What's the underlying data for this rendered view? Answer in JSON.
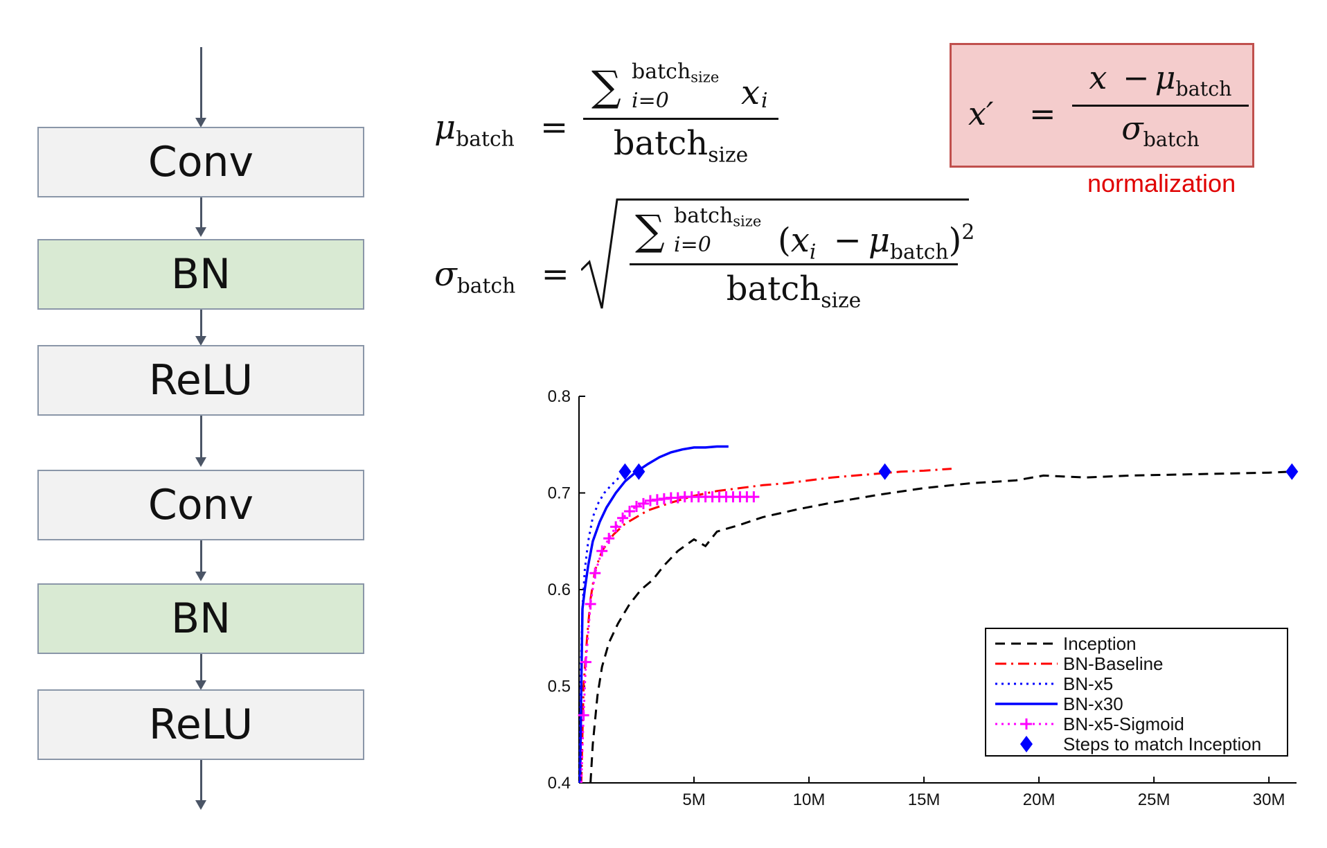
{
  "pipeline": {
    "blocks": [
      {
        "label": "Conv",
        "kind": "plain"
      },
      {
        "label": "BN",
        "kind": "bn"
      },
      {
        "label": "ReLU",
        "kind": "plain"
      },
      {
        "label": "Conv",
        "kind": "plain"
      },
      {
        "label": "BN",
        "kind": "bn"
      },
      {
        "label": "ReLU",
        "kind": "plain"
      }
    ],
    "colors": {
      "plain": "#f2f2f2",
      "bn": "#d9ead3",
      "border": "#8a96a8",
      "arrow": "#4b5566"
    }
  },
  "equations": {
    "mu": {
      "lhs": "μ",
      "lhs_sub": "batch",
      "eq": "=",
      "sum": "∑",
      "sum_upper": "batch",
      "sum_upper_sub": "size",
      "sum_lower": "i=0",
      "term": "x",
      "term_sub": "i",
      "den": "batch",
      "den_sub": "size"
    },
    "sigma": {
      "lhs": "σ",
      "lhs_sub": "batch",
      "eq": "=",
      "sum": "∑",
      "sum_upper": "batch",
      "sum_upper_sub": "size",
      "sum_lower": "i=0",
      "paren_open": "(",
      "term": "x",
      "term_sub": "i",
      "minus": "−",
      "mu": "μ",
      "mu_sub": "batch",
      "paren_close": ")",
      "power": "2",
      "den": "batch",
      "den_sub": "size"
    },
    "normalization": {
      "lhs": "x′",
      "eq": "=",
      "num_x": "x",
      "num_minus": "−",
      "num_mu": "μ",
      "num_mu_sub": "batch",
      "den_sigma": "σ",
      "den_sigma_sub": "batch",
      "caption": "normalization",
      "box_fill": "#f4cccc",
      "box_border": "#c0504d",
      "caption_color": "#e00000"
    }
  },
  "chart_data": {
    "type": "line",
    "xlim": [
      0,
      31.2
    ],
    "ylim": [
      0.4,
      0.8
    ],
    "x_unit": "M",
    "xticks": [
      5,
      10,
      15,
      20,
      25,
      30
    ],
    "xtick_labels": [
      "5M",
      "10M",
      "15M",
      "20M",
      "25M",
      "30M"
    ],
    "yticks": [
      0.4,
      0.5,
      0.6,
      0.7,
      0.8
    ],
    "ytick_labels": [
      "0.4",
      "0.5",
      "0.6",
      "0.7",
      "0.8"
    ],
    "legend_position": "bottom-right",
    "series": [
      {
        "name": "Inception",
        "color": "#000000",
        "style": "dashed",
        "x": [
          0.5,
          0.6,
          0.8,
          1.0,
          1.3,
          1.7,
          2.2,
          2.7,
          3.2,
          3.7,
          4.3,
          5.0,
          5.5,
          6.0,
          7.0,
          8.0,
          9.5,
          11,
          13,
          15,
          17,
          19,
          20.2,
          22,
          24,
          26,
          28,
          30,
          31
        ],
        "y": [
          0.4,
          0.44,
          0.49,
          0.52,
          0.545,
          0.565,
          0.585,
          0.6,
          0.61,
          0.625,
          0.64,
          0.652,
          0.645,
          0.66,
          0.667,
          0.675,
          0.683,
          0.69,
          0.698,
          0.705,
          0.71,
          0.713,
          0.718,
          0.716,
          0.718,
          0.719,
          0.72,
          0.721,
          0.722
        ]
      },
      {
        "name": "BN-Baseline",
        "color": "#ff0000",
        "style": "dashdot",
        "x": [
          0.1,
          0.2,
          0.35,
          0.5,
          0.7,
          1.0,
          1.5,
          2.0,
          3.0,
          4.0,
          5.0,
          6.0,
          7.0,
          8.0,
          9.0,
          10.0,
          11.0,
          12.0,
          13.0,
          14.0,
          15.0,
          16.2
        ],
        "y": [
          0.4,
          0.5,
          0.55,
          0.59,
          0.62,
          0.64,
          0.657,
          0.668,
          0.682,
          0.69,
          0.697,
          0.702,
          0.705,
          0.708,
          0.71,
          0.713,
          0.716,
          0.718,
          0.72,
          0.722,
          0.723,
          0.725
        ]
      },
      {
        "name": "BN-x5",
        "color": "#0000ff",
        "style": "dotted",
        "x": [
          0.02,
          0.08,
          0.15,
          0.25,
          0.4,
          0.6,
          0.85,
          1.1,
          1.4,
          1.7,
          2.0
        ],
        "y": [
          0.4,
          0.52,
          0.58,
          0.62,
          0.65,
          0.675,
          0.69,
          0.7,
          0.708,
          0.715,
          0.72
        ]
      },
      {
        "name": "BN-x30",
        "color": "#0000ff",
        "style": "solid",
        "x": [
          0.05,
          0.1,
          0.15,
          0.25,
          0.4,
          0.6,
          0.9,
          1.2,
          1.6,
          2.0,
          2.5,
          3.0,
          3.5,
          4.0,
          4.5,
          5.0,
          5.5,
          6.0,
          6.5
        ],
        "y": [
          0.4,
          0.5,
          0.58,
          0.6,
          0.625,
          0.65,
          0.67,
          0.685,
          0.7,
          0.712,
          0.722,
          0.73,
          0.737,
          0.742,
          0.745,
          0.747,
          0.747,
          0.748,
          0.748
        ]
      },
      {
        "name": "BN-x5-Sigmoid",
        "color": "#ff00ff",
        "style": "dotted",
        "marker": "plus",
        "x": [
          0.1,
          0.2,
          0.3,
          0.5,
          0.7,
          1.0,
          1.3,
          1.6,
          1.9,
          2.2,
          2.5,
          2.8,
          3.1,
          3.4,
          3.7,
          4.0,
          4.3,
          4.6,
          4.9,
          5.2,
          5.5,
          5.8,
          6.1,
          6.4,
          6.7,
          7.0,
          7.3,
          7.6
        ],
        "y": [
          0.4,
          0.47,
          0.525,
          0.585,
          0.617,
          0.64,
          0.653,
          0.665,
          0.674,
          0.681,
          0.686,
          0.689,
          0.692,
          0.693,
          0.694,
          0.695,
          0.695,
          0.696,
          0.696,
          0.696,
          0.696,
          0.696,
          0.696,
          0.696,
          0.696,
          0.696,
          0.696,
          0.696
        ]
      },
      {
        "name": "Steps to match Inception",
        "color": "#0000ff",
        "style": "none",
        "marker": "diamond",
        "x": [
          2.0,
          2.6,
          13.3,
          31.0
        ],
        "y": [
          0.722,
          0.722,
          0.722,
          0.722
        ]
      }
    ]
  }
}
